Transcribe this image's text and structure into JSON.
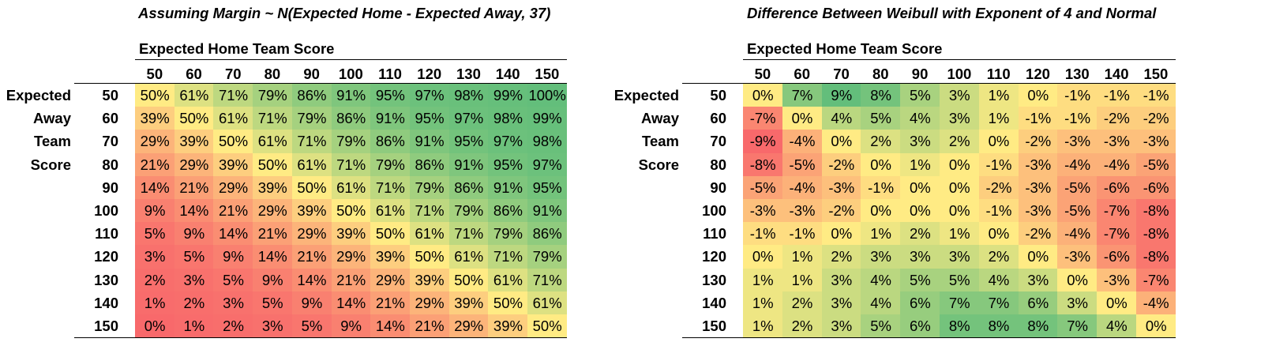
{
  "chart_data": [
    {
      "type": "heatmap",
      "title": "Assuming Margin ~ N(Expected Home - Expected Away, 37)",
      "xlabel": "Expected Home Team Score",
      "ylabel": [
        "Expected",
        "Away",
        "Team",
        "Score"
      ],
      "x": [
        "50",
        "60",
        "70",
        "80",
        "90",
        "100",
        "110",
        "120",
        "130",
        "140",
        "150"
      ],
      "y": [
        "50",
        "60",
        "70",
        "80",
        "90",
        "100",
        "110",
        "120",
        "130",
        "140",
        "150"
      ],
      "values": [
        [
          50,
          61,
          71,
          79,
          86,
          91,
          95,
          97,
          98,
          99,
          100
        ],
        [
          39,
          50,
          61,
          71,
          79,
          86,
          91,
          95,
          97,
          98,
          99
        ],
        [
          29,
          39,
          50,
          61,
          71,
          79,
          86,
          91,
          95,
          97,
          98
        ],
        [
          21,
          29,
          39,
          50,
          61,
          71,
          79,
          86,
          91,
          95,
          97
        ],
        [
          14,
          21,
          29,
          39,
          50,
          61,
          71,
          79,
          86,
          91,
          95
        ],
        [
          9,
          14,
          21,
          29,
          39,
          50,
          61,
          71,
          79,
          86,
          91
        ],
        [
          5,
          9,
          14,
          21,
          29,
          39,
          50,
          61,
          71,
          79,
          86
        ],
        [
          3,
          5,
          9,
          14,
          21,
          29,
          39,
          50,
          61,
          71,
          79
        ],
        [
          2,
          3,
          5,
          9,
          14,
          21,
          29,
          39,
          50,
          61,
          71
        ],
        [
          1,
          2,
          3,
          5,
          9,
          14,
          21,
          29,
          39,
          50,
          61
        ],
        [
          0,
          1,
          2,
          3,
          5,
          9,
          14,
          21,
          29,
          39,
          50
        ]
      ],
      "value_suffix": "%",
      "color_scale": {
        "low": "#f8696b",
        "mid": "#ffeb84",
        "high": "#63be7b"
      },
      "color_range": [
        0,
        50,
        100
      ]
    },
    {
      "type": "heatmap",
      "title": "Difference Between Weibull with Exponent of 4 and Normal",
      "xlabel": "Expected Home Team Score",
      "ylabel": [
        "Expected",
        "Away",
        "Team",
        "Score"
      ],
      "x": [
        "50",
        "60",
        "70",
        "80",
        "90",
        "100",
        "110",
        "120",
        "130",
        "140",
        "150"
      ],
      "y": [
        "50",
        "60",
        "70",
        "80",
        "90",
        "100",
        "110",
        "120",
        "130",
        "140",
        "150"
      ],
      "values": [
        [
          0,
          7,
          9,
          8,
          5,
          3,
          1,
          0,
          -1,
          -1,
          -1
        ],
        [
          -7,
          0,
          4,
          5,
          4,
          3,
          1,
          -1,
          -1,
          -2,
          -2
        ],
        [
          -9,
          -4,
          0,
          2,
          3,
          2,
          0,
          -2,
          -3,
          -3,
          -3
        ],
        [
          -8,
          -5,
          -2,
          0,
          1,
          0,
          -1,
          -3,
          -4,
          -4,
          -5
        ],
        [
          -5,
          -4,
          -3,
          -1,
          0,
          0,
          -2,
          -3,
          -5,
          -6,
          -6
        ],
        [
          -3,
          -3,
          -2,
          0,
          0,
          0,
          -1,
          -3,
          -5,
          -7,
          -8
        ],
        [
          -1,
          -1,
          0,
          1,
          2,
          1,
          0,
          -2,
          -4,
          -7,
          -8
        ],
        [
          0,
          1,
          2,
          3,
          3,
          3,
          2,
          0,
          -3,
          -6,
          -8
        ],
        [
          1,
          1,
          3,
          4,
          5,
          5,
          4,
          3,
          0,
          -3,
          -7
        ],
        [
          1,
          2,
          3,
          4,
          6,
          7,
          7,
          6,
          3,
          0,
          -4
        ],
        [
          1,
          2,
          3,
          5,
          6,
          8,
          8,
          8,
          7,
          4,
          0
        ]
      ],
      "value_suffix": "%",
      "color_scale": {
        "low": "#f8696b",
        "mid": "#ffeb84",
        "high": "#63be7b"
      },
      "color_range": [
        -9,
        0,
        9
      ]
    }
  ]
}
